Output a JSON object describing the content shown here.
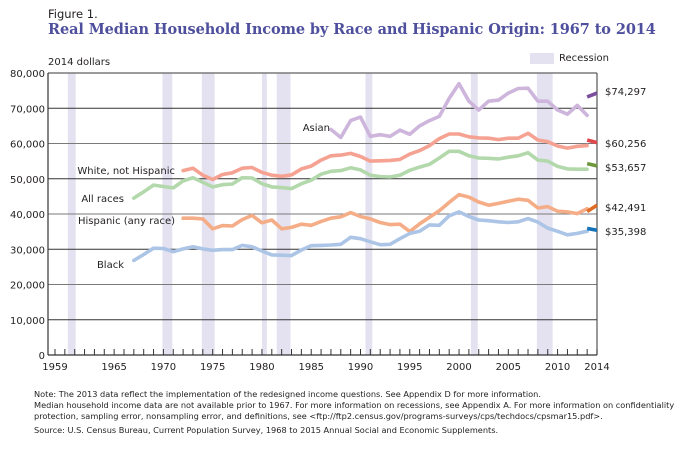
{
  "figure": {
    "label": "Figure 1.",
    "title": "Real Median Household Income by Race and Hispanic Origin: 1967 to 2014",
    "units": "2014 dollars",
    "legend_label": "Recession"
  },
  "chart_data": {
    "type": "line",
    "title": "Real Median Household Income by Race and Hispanic Origin: 1967 to 2014",
    "ylabel": "2014 dollars",
    "xlabel": "",
    "xlim": [
      1959,
      2014
    ],
    "ylim": [
      0,
      80000
    ],
    "grid": true,
    "legend": "top-right",
    "x_ticks": [
      "1959",
      "1965",
      "1970",
      "1975",
      "1980",
      "1985",
      "1990",
      "1995",
      "2000",
      "2005",
      "2010",
      "2014"
    ],
    "y_ticks": [
      "0",
      "10,000",
      "20,000",
      "30,000",
      "40,000",
      "50,000",
      "60,000",
      "70,000",
      "80,000"
    ],
    "recessions": [
      [
        1960.3,
        1961.1
      ],
      [
        1969.9,
        1970.9
      ],
      [
        1973.9,
        1975.2
      ],
      [
        1980.0,
        1980.5
      ],
      [
        1981.5,
        1982.9
      ],
      [
        1990.5,
        1991.2
      ],
      [
        2001.2,
        2001.9
      ],
      [
        2007.9,
        2009.5
      ]
    ],
    "series": [
      {
        "name": "Asian",
        "color": "#cdb5dc",
        "label_2014": "$74,297",
        "end_color": "#7a4e9d",
        "x": [
          1987,
          1988,
          1989,
          1990,
          1991,
          1992,
          1993,
          1994,
          1995,
          1996,
          1997,
          1998,
          1999,
          2000,
          2001,
          2002,
          2003,
          2004,
          2005,
          2006,
          2007,
          2008,
          2009,
          2010,
          2011,
          2012,
          2013
        ],
        "values": [
          64000,
          61700,
          66500,
          67500,
          62000,
          62500,
          62000,
          63800,
          62600,
          65000,
          66500,
          67700,
          72800,
          77000,
          72000,
          69500,
          72000,
          72300,
          74300,
          75600,
          75700,
          72000,
          72000,
          69500,
          68300,
          70800,
          68000
        ],
        "end_segment": [
          73200,
          74297
        ]
      },
      {
        "name": "White, not Hispanic",
        "color": "#f5a293",
        "label_2014": "$60,256",
        "end_color": "#e0484e",
        "x": [
          1972,
          1973,
          1974,
          1975,
          1976,
          1977,
          1978,
          1979,
          1980,
          1981,
          1982,
          1983,
          1984,
          1985,
          1986,
          1987,
          1988,
          1989,
          1990,
          1991,
          1992,
          1993,
          1994,
          1995,
          1996,
          1997,
          1998,
          1999,
          2000,
          2001,
          2002,
          2003,
          2004,
          2005,
          2006,
          2007,
          2008,
          2009,
          2010,
          2011,
          2012,
          2013
        ],
        "values": [
          52300,
          53000,
          51000,
          49800,
          51200,
          51700,
          53000,
          53200,
          51800,
          51000,
          50700,
          51100,
          52800,
          53600,
          55300,
          56500,
          56700,
          57200,
          56300,
          55000,
          55100,
          55200,
          55500,
          57000,
          58000,
          59400,
          61400,
          62700,
          62700,
          61900,
          61600,
          61500,
          61100,
          61500,
          61500,
          62900,
          61000,
          60500,
          59300,
          58700,
          59200,
          59400
        ],
        "end_segment": [
          61000,
          60256
        ]
      },
      {
        "name": "All races",
        "color": "#b2d8ac",
        "label_2014": "$53,657",
        "end_color": "#6f973b",
        "x": [
          1967,
          1968,
          1969,
          1970,
          1971,
          1972,
          1973,
          1974,
          1975,
          1976,
          1977,
          1978,
          1979,
          1980,
          1981,
          1982,
          1983,
          1984,
          1985,
          1986,
          1987,
          1988,
          1989,
          1990,
          1991,
          1992,
          1993,
          1994,
          1995,
          1996,
          1997,
          1998,
          1999,
          2000,
          2001,
          2002,
          2003,
          2004,
          2005,
          2006,
          2007,
          2008,
          2009,
          2010,
          2011,
          2012,
          2013
        ],
        "values": [
          44500,
          46300,
          48200,
          47800,
          47400,
          49400,
          50300,
          49000,
          47700,
          48300,
          48500,
          50300,
          50200,
          48600,
          47700,
          47500,
          47200,
          48600,
          49600,
          51300,
          52100,
          52300,
          53100,
          52500,
          51000,
          50600,
          50500,
          51000,
          52400,
          53300,
          54100,
          55900,
          57800,
          57800,
          56500,
          55900,
          55800,
          55600,
          56100,
          56500,
          57400,
          55300,
          55000,
          53500,
          52800,
          52700,
          52700
        ],
        "end_segment": [
          54300,
          53657
        ]
      },
      {
        "name": "Hispanic (any race)",
        "color": "#f4ad87",
        "label_2014": "$42,491",
        "end_color": "#e06b24",
        "x": [
          1972,
          1973,
          1974,
          1975,
          1976,
          1977,
          1978,
          1979,
          1980,
          1981,
          1982,
          1983,
          1984,
          1985,
          1986,
          1987,
          1988,
          1989,
          1990,
          1991,
          1992,
          1993,
          1994,
          1995,
          1996,
          1997,
          1998,
          1999,
          2000,
          2001,
          2002,
          2003,
          2004,
          2005,
          2006,
          2007,
          2008,
          2009,
          2010,
          2011,
          2012,
          2013
        ],
        "values": [
          38800,
          38800,
          38600,
          35800,
          36700,
          36600,
          38400,
          39600,
          37500,
          38300,
          35800,
          36200,
          37100,
          36800,
          37900,
          38800,
          39200,
          40400,
          39300,
          38600,
          37600,
          37000,
          37100,
          35000,
          37200,
          39100,
          40900,
          43300,
          45500,
          44800,
          43400,
          42500,
          43000,
          43600,
          44200,
          43900,
          41700,
          42100,
          40800,
          40600,
          40100,
          41500
        ],
        "end_segment": [
          40700,
          42491
        ]
      },
      {
        "name": "Black",
        "color": "#acc5e6",
        "label_2014": "$35,398",
        "end_color": "#1473b8",
        "x": [
          1967,
          1968,
          1969,
          1970,
          1971,
          1972,
          1973,
          1974,
          1975,
          1976,
          1977,
          1978,
          1979,
          1980,
          1981,
          1982,
          1983,
          1984,
          1985,
          1986,
          1987,
          1988,
          1989,
          1990,
          1991,
          1992,
          1993,
          1994,
          1995,
          1996,
          1997,
          1998,
          1999,
          2000,
          2001,
          2002,
          2003,
          2004,
          2005,
          2006,
          2007,
          2008,
          2009,
          2010,
          2011,
          2012,
          2013
        ],
        "values": [
          26800,
          28500,
          30300,
          30200,
          29300,
          30100,
          30700,
          30100,
          29700,
          29900,
          29900,
          31100,
          30700,
          29500,
          28400,
          28300,
          28200,
          29800,
          31000,
          31100,
          31200,
          31400,
          33400,
          33000,
          32100,
          31300,
          31400,
          33000,
          34500,
          35100,
          36900,
          36800,
          39500,
          40600,
          39300,
          38300,
          38100,
          37800,
          37600,
          37800,
          38700,
          37700,
          36000,
          35100,
          34100,
          34500,
          35100
        ],
        "end_segment": [
          35900,
          35398
        ]
      }
    ],
    "annotations": [
      {
        "text": "Asian",
        "series": "Asian"
      },
      {
        "text": "White, not Hispanic",
        "series": "White, not Hispanic"
      },
      {
        "text": "All races",
        "series": "All races"
      },
      {
        "text": "Hispanic (any race)",
        "series": "Hispanic (any race)"
      },
      {
        "text": "Black",
        "series": "Black"
      }
    ]
  },
  "notes": {
    "note_line1": "Note: The 2013 data reflect the implementation of the redesigned income questions. See Appendix D for more information.",
    "note_line2": "Median household income data are not available prior to 1967. For more information on recessions, see Appendix A. For more information on confidentiality protection, sampling error, nonsampling error, and definitions, see <ftp://ftp2.census.gov/programs-surveys/cps/techdocs/cpsmar15.pdf>.",
    "source": "Source: U.S. Census Bureau, Current Population Survey, 1968 to 2015 Annual Social and Economic Supplements."
  }
}
